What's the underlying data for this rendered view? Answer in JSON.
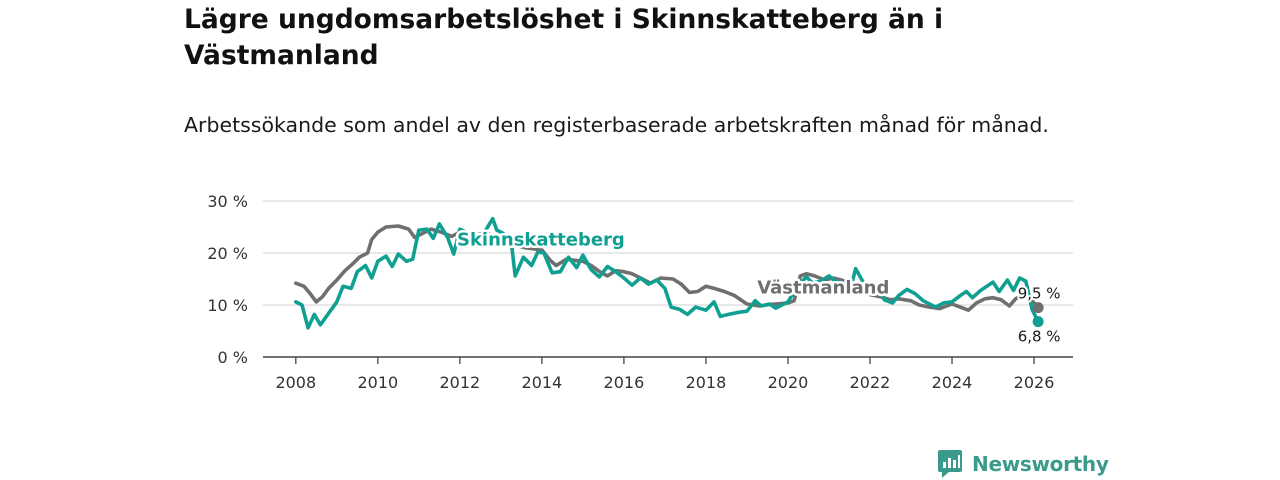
{
  "header": {
    "title": "Lägre ungdomsarbetslöshet i Skinnskatteberg än i Västmanland",
    "subtitle": "Arbetssökande som andel av den registerbaserade arbetskraften månad för månad."
  },
  "brand": {
    "name": "Newsworthy",
    "color": "#3a9a8c"
  },
  "chart_data": {
    "type": "line",
    "title": "Lägre ungdomsarbetslöshet i Skinnskatteberg än i Västmanland",
    "subtitle": "Arbetssökande som andel av den registerbaserade arbetskraften månad för månad.",
    "xlabel": "",
    "ylabel": "",
    "xlim": [
      2007.2,
      2026.95
    ],
    "ylim": [
      0,
      30
    ],
    "x_ticks": [
      2008,
      2010,
      2012,
      2014,
      2016,
      2018,
      2020,
      2022,
      2024,
      2026
    ],
    "y_ticks": [
      0,
      10,
      20,
      30
    ],
    "y_tick_labels": [
      "0 %",
      "10 %",
      "20 %",
      "30 %"
    ],
    "grid": true,
    "legend": "inline labels",
    "series": [
      {
        "name": "Västmanland",
        "color": "#6f6f6f",
        "label_x": 2019.25,
        "label_y": 12.2,
        "points": [
          [
            2008.0,
            14.2
          ],
          [
            2008.2,
            13.6
          ],
          [
            2008.35,
            12.2
          ],
          [
            2008.5,
            10.6
          ],
          [
            2008.65,
            11.6
          ],
          [
            2008.8,
            13.2
          ],
          [
            2009.0,
            14.8
          ],
          [
            2009.2,
            16.6
          ],
          [
            2009.4,
            18.0
          ],
          [
            2009.55,
            19.2
          ],
          [
            2009.75,
            20.0
          ],
          [
            2009.85,
            22.6
          ],
          [
            2010.0,
            24.0
          ],
          [
            2010.2,
            25.0
          ],
          [
            2010.5,
            25.2
          ],
          [
            2010.75,
            24.6
          ],
          [
            2010.9,
            23.0
          ],
          [
            2011.0,
            23.4
          ],
          [
            2011.3,
            24.6
          ],
          [
            2011.55,
            24.0
          ],
          [
            2011.8,
            23.2
          ],
          [
            2012.0,
            24.0
          ],
          [
            2012.35,
            23.4
          ],
          [
            2012.65,
            23.8
          ],
          [
            2013.0,
            22.8
          ],
          [
            2013.3,
            21.6
          ],
          [
            2013.6,
            21.0
          ],
          [
            2013.8,
            20.8
          ],
          [
            2014.0,
            20.6
          ],
          [
            2014.2,
            18.6
          ],
          [
            2014.35,
            17.6
          ],
          [
            2014.6,
            18.8
          ],
          [
            2014.8,
            18.6
          ],
          [
            2015.0,
            18.4
          ],
          [
            2015.2,
            17.6
          ],
          [
            2015.45,
            16.2
          ],
          [
            2015.6,
            15.6
          ],
          [
            2015.8,
            16.6
          ],
          [
            2016.0,
            16.4
          ],
          [
            2016.2,
            16.0
          ],
          [
            2016.45,
            15.0
          ],
          [
            2016.65,
            14.2
          ],
          [
            2016.9,
            15.2
          ],
          [
            2017.2,
            15.0
          ],
          [
            2017.4,
            14.0
          ],
          [
            2017.6,
            12.4
          ],
          [
            2017.8,
            12.6
          ],
          [
            2018.0,
            13.6
          ],
          [
            2018.2,
            13.2
          ],
          [
            2018.45,
            12.6
          ],
          [
            2018.7,
            11.8
          ],
          [
            2019.0,
            10.2
          ],
          [
            2019.3,
            9.8
          ],
          [
            2019.55,
            10.1
          ],
          [
            2019.7,
            10.2
          ],
          [
            2020.0,
            10.4
          ],
          [
            2020.15,
            10.8
          ],
          [
            2020.3,
            15.6
          ],
          [
            2020.45,
            16.0
          ],
          [
            2020.65,
            15.6
          ],
          [
            2020.9,
            14.8
          ],
          [
            2021.1,
            15.2
          ],
          [
            2021.3,
            14.8
          ],
          [
            2021.55,
            14.2
          ],
          [
            2021.8,
            13.6
          ],
          [
            2022.0,
            12.0
          ],
          [
            2022.25,
            11.6
          ],
          [
            2022.5,
            11.0
          ],
          [
            2022.7,
            11.2
          ],
          [
            2023.0,
            10.8
          ],
          [
            2023.2,
            10.0
          ],
          [
            2023.45,
            9.6
          ],
          [
            2023.7,
            9.3
          ],
          [
            2024.0,
            10.2
          ],
          [
            2024.2,
            9.6
          ],
          [
            2024.4,
            9.0
          ],
          [
            2024.6,
            10.4
          ],
          [
            2024.8,
            11.2
          ],
          [
            2025.0,
            11.4
          ],
          [
            2025.2,
            11.0
          ],
          [
            2025.4,
            9.8
          ],
          [
            2025.55,
            11.2
          ],
          [
            2025.7,
            11.8
          ],
          [
            2025.85,
            11.8
          ],
          [
            2026.0,
            10.4
          ],
          [
            2026.1,
            9.5
          ]
        ],
        "end_value": 9.5,
        "end_label": "9,5 %"
      },
      {
        "name": "Skinnskatteberg",
        "color": "#10a092",
        "label_x": 2011.93,
        "label_y": 21.4,
        "points": [
          [
            2008.0,
            10.6
          ],
          [
            2008.15,
            10.0
          ],
          [
            2008.3,
            5.6
          ],
          [
            2008.45,
            8.2
          ],
          [
            2008.6,
            6.2
          ],
          [
            2008.8,
            8.4
          ],
          [
            2009.0,
            10.6
          ],
          [
            2009.15,
            13.6
          ],
          [
            2009.35,
            13.2
          ],
          [
            2009.5,
            16.4
          ],
          [
            2009.7,
            17.6
          ],
          [
            2009.85,
            15.2
          ],
          [
            2010.0,
            18.4
          ],
          [
            2010.2,
            19.4
          ],
          [
            2010.35,
            17.4
          ],
          [
            2010.5,
            19.8
          ],
          [
            2010.7,
            18.4
          ],
          [
            2010.85,
            18.8
          ],
          [
            2011.0,
            24.4
          ],
          [
            2011.2,
            24.6
          ],
          [
            2011.35,
            22.8
          ],
          [
            2011.5,
            25.6
          ],
          [
            2011.7,
            23.0
          ],
          [
            2011.85,
            19.8
          ],
          [
            2012.0,
            24.6
          ],
          [
            2012.2,
            23.8
          ],
          [
            2012.4,
            21.4
          ],
          [
            2012.6,
            24.0
          ],
          [
            2012.8,
            26.6
          ],
          [
            2012.9,
            24.4
          ],
          [
            2013.05,
            23.8
          ],
          [
            2013.25,
            22.4
          ],
          [
            2013.35,
            15.6
          ],
          [
            2013.55,
            19.2
          ],
          [
            2013.75,
            17.6
          ],
          [
            2013.9,
            20.2
          ],
          [
            2014.05,
            20.0
          ],
          [
            2014.25,
            16.2
          ],
          [
            2014.45,
            16.4
          ],
          [
            2014.65,
            19.2
          ],
          [
            2014.85,
            17.2
          ],
          [
            2015.0,
            19.6
          ],
          [
            2015.2,
            16.8
          ],
          [
            2015.4,
            15.4
          ],
          [
            2015.6,
            17.4
          ],
          [
            2015.8,
            16.4
          ],
          [
            2016.0,
            15.2
          ],
          [
            2016.2,
            13.8
          ],
          [
            2016.4,
            15.2
          ],
          [
            2016.6,
            14.0
          ],
          [
            2016.8,
            14.8
          ],
          [
            2017.0,
            13.2
          ],
          [
            2017.15,
            9.6
          ],
          [
            2017.35,
            9.2
          ],
          [
            2017.55,
            8.2
          ],
          [
            2017.75,
            9.6
          ],
          [
            2018.0,
            9.0
          ],
          [
            2018.2,
            10.6
          ],
          [
            2018.35,
            7.8
          ],
          [
            2018.55,
            8.2
          ],
          [
            2018.8,
            8.6
          ],
          [
            2019.0,
            8.8
          ],
          [
            2019.2,
            10.8
          ],
          [
            2019.35,
            9.8
          ],
          [
            2019.55,
            10.2
          ],
          [
            2019.7,
            9.4
          ],
          [
            2020.0,
            10.6
          ],
          [
            2020.15,
            12.6
          ],
          [
            2020.3,
            14.2
          ],
          [
            2020.45,
            15.4
          ],
          [
            2020.6,
            14.2
          ],
          [
            2020.8,
            14.6
          ],
          [
            2021.0,
            15.6
          ],
          [
            2021.15,
            14.6
          ],
          [
            2021.35,
            14.2
          ],
          [
            2021.55,
            13.8
          ],
          [
            2021.65,
            17.0
          ],
          [
            2021.85,
            14.2
          ],
          [
            2022.0,
            12.6
          ],
          [
            2022.2,
            13.6
          ],
          [
            2022.35,
            11.0
          ],
          [
            2022.55,
            10.4
          ],
          [
            2022.7,
            11.8
          ],
          [
            2022.9,
            13.0
          ],
          [
            2023.1,
            12.2
          ],
          [
            2023.3,
            10.8
          ],
          [
            2023.45,
            10.2
          ],
          [
            2023.6,
            9.6
          ],
          [
            2023.8,
            10.4
          ],
          [
            2024.0,
            10.6
          ],
          [
            2024.2,
            11.8
          ],
          [
            2024.35,
            12.6
          ],
          [
            2024.5,
            11.4
          ],
          [
            2024.7,
            12.8
          ],
          [
            2024.85,
            13.6
          ],
          [
            2025.0,
            14.4
          ],
          [
            2025.15,
            12.6
          ],
          [
            2025.35,
            14.8
          ],
          [
            2025.5,
            12.8
          ],
          [
            2025.65,
            15.2
          ],
          [
            2025.8,
            14.6
          ],
          [
            2025.95,
            9.2
          ],
          [
            2026.1,
            6.8
          ]
        ],
        "end_value": 6.8,
        "end_label": "6,8 %"
      }
    ]
  }
}
